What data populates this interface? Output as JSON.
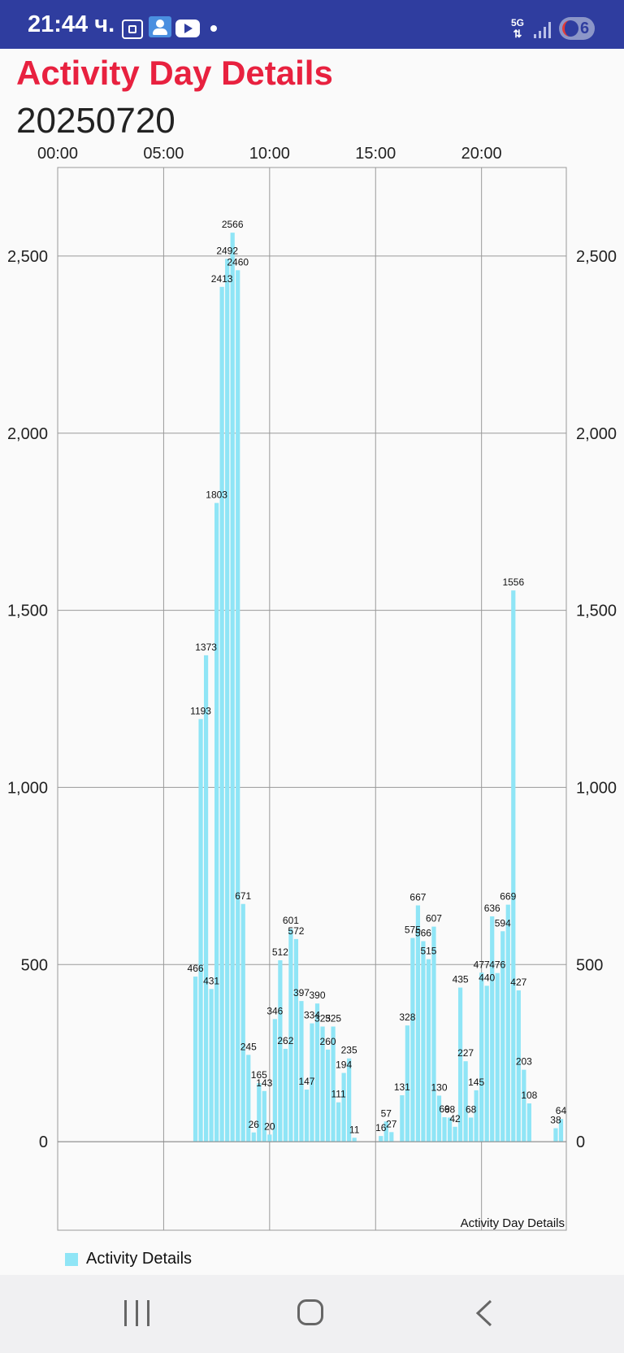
{
  "status_bar": {
    "time": "21:44 ч.",
    "network": "5G",
    "battery_level": "6",
    "icons": [
      "gallery-icon",
      "photo-icon",
      "youtube-icon",
      "dot-icon",
      "5g-icon",
      "signal-icon",
      "battery-icon"
    ]
  },
  "page": {
    "title": "Activity Day Details",
    "date": "20250720"
  },
  "colors": {
    "status_bar": "#2f3d9f",
    "title": "#e8213f",
    "bar": "#8fe5f6",
    "grid": "#999999"
  },
  "chart_data": {
    "type": "bar",
    "x_axis_position": "top",
    "x_unit": "minutes of day",
    "xlim": [
      0,
      1440
    ],
    "xtick_labels": [
      "00:00",
      "05:00",
      "10:00",
      "15:00",
      "20:00"
    ],
    "xtick_values": [
      0,
      300,
      600,
      900,
      1200
    ],
    "ylim": [
      -250,
      2750
    ],
    "ytick_values": [
      0,
      500,
      1000,
      1500,
      2000,
      2500
    ],
    "ytick_labels": [
      "0",
      "500",
      "1,000",
      "1,500",
      "2,000",
      "2,500"
    ],
    "y_axis_both_sides": true,
    "grid": true,
    "description_text": "Activity Day Details",
    "legend": {
      "label": "Activity Details",
      "position": "bottom-left"
    },
    "bar_width_minutes": 12,
    "series": [
      {
        "name": "Activity Details",
        "points": [
          {
            "x": 390,
            "y": 466
          },
          {
            "x": 405,
            "y": 1193
          },
          {
            "x": 420,
            "y": 1373
          },
          {
            "x": 435,
            "y": 431
          },
          {
            "x": 450,
            "y": 1803
          },
          {
            "x": 465,
            "y": 2413
          },
          {
            "x": 480,
            "y": 2492
          },
          {
            "x": 495,
            "y": 2566
          },
          {
            "x": 510,
            "y": 2460
          },
          {
            "x": 525,
            "y": 671
          },
          {
            "x": 540,
            "y": 245
          },
          {
            "x": 555,
            "y": 26
          },
          {
            "x": 570,
            "y": 165
          },
          {
            "x": 585,
            "y": 143
          },
          {
            "x": 600,
            "y": 20
          },
          {
            "x": 615,
            "y": 346
          },
          {
            "x": 630,
            "y": 512
          },
          {
            "x": 645,
            "y": 262
          },
          {
            "x": 660,
            "y": 601
          },
          {
            "x": 675,
            "y": 572
          },
          {
            "x": 690,
            "y": 397
          },
          {
            "x": 705,
            "y": 147
          },
          {
            "x": 720,
            "y": 334
          },
          {
            "x": 735,
            "y": 390
          },
          {
            "x": 750,
            "y": 325
          },
          {
            "x": 765,
            "y": 260
          },
          {
            "x": 780,
            "y": 325
          },
          {
            "x": 795,
            "y": 111
          },
          {
            "x": 810,
            "y": 194
          },
          {
            "x": 825,
            "y": 235
          },
          {
            "x": 840,
            "y": 11
          },
          {
            "x": 915,
            "y": 16
          },
          {
            "x": 930,
            "y": 57
          },
          {
            "x": 945,
            "y": 27
          },
          {
            "x": 975,
            "y": 131
          },
          {
            "x": 990,
            "y": 328
          },
          {
            "x": 1005,
            "y": 575
          },
          {
            "x": 1020,
            "y": 667
          },
          {
            "x": 1035,
            "y": 566
          },
          {
            "x": 1050,
            "y": 515
          },
          {
            "x": 1065,
            "y": 607
          },
          {
            "x": 1080,
            "y": 130
          },
          {
            "x": 1095,
            "y": 69
          },
          {
            "x": 1110,
            "y": 68
          },
          {
            "x": 1125,
            "y": 42
          },
          {
            "x": 1140,
            "y": 435
          },
          {
            "x": 1155,
            "y": 227
          },
          {
            "x": 1170,
            "y": 68
          },
          {
            "x": 1185,
            "y": 145
          },
          {
            "x": 1200,
            "y": 477
          },
          {
            "x": 1215,
            "y": 440
          },
          {
            "x": 1230,
            "y": 636
          },
          {
            "x": 1245,
            "y": 476
          },
          {
            "x": 1260,
            "y": 594
          },
          {
            "x": 1275,
            "y": 669
          },
          {
            "x": 1290,
            "y": 1556
          },
          {
            "x": 1305,
            "y": 427
          },
          {
            "x": 1320,
            "y": 203
          },
          {
            "x": 1335,
            "y": 108
          },
          {
            "x": 1410,
            "y": 38
          },
          {
            "x": 1425,
            "y": 64
          }
        ]
      }
    ]
  },
  "nav_bar": {
    "icons": [
      "recents-icon",
      "home-icon",
      "back-icon"
    ]
  }
}
